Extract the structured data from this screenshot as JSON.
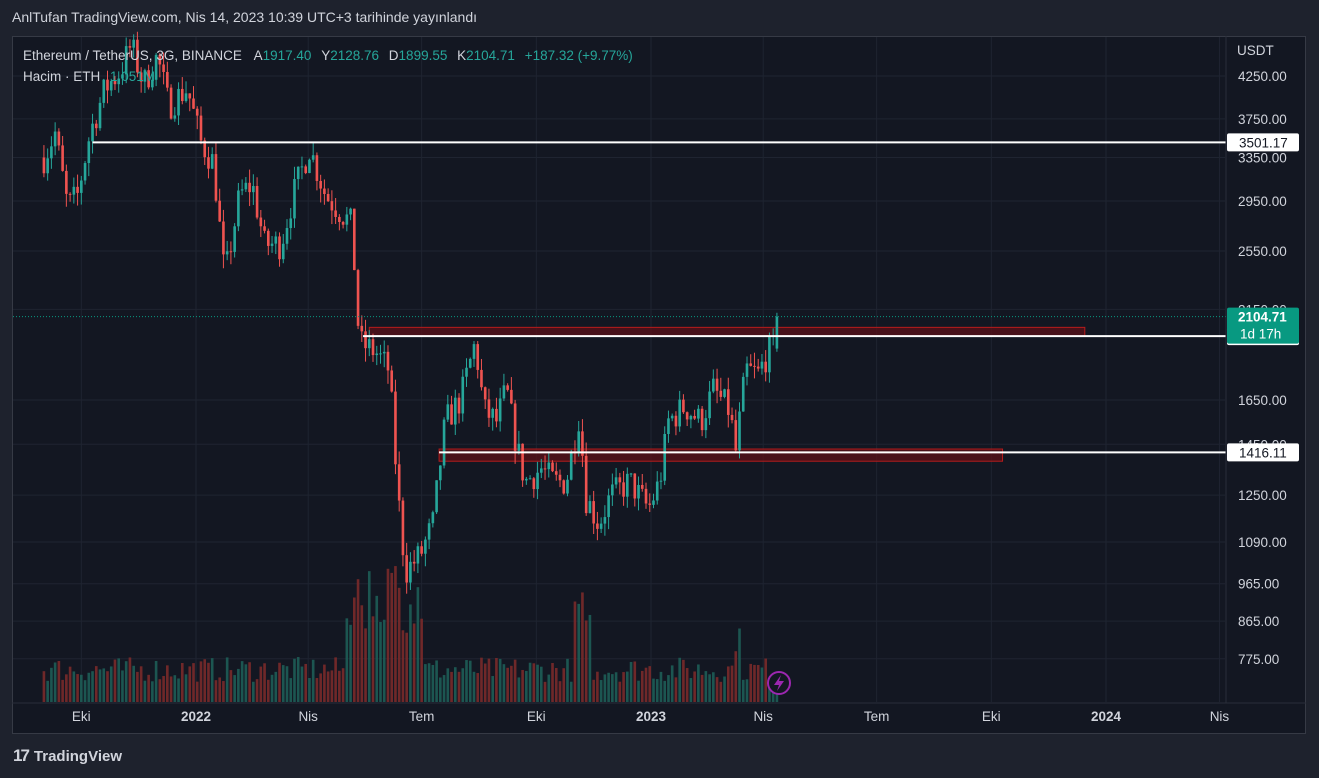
{
  "caption": "AnlTufan TradingView.com, Nis 14, 2023 10:39 UTC+3 tarihinde yayınlandı",
  "brand": "TradingView",
  "legend": {
    "symbol": "Ethereum / TetherUS, 3G, BINANCE",
    "o_key": "A",
    "o_val": "1917.40",
    "h_key": "Y",
    "h_val": "2128.76",
    "l_key": "D",
    "l_val": "1899.55",
    "c_key": "K",
    "c_val": "2104.71",
    "change": "+187.32 (+9.77%)",
    "volume_label": "Hacim · ETH",
    "volume_val": "1.051M"
  },
  "colors": {
    "up": "#26a69a",
    "down": "#ef5350",
    "background": "#131722",
    "grid": "#1f2431",
    "level_line": "#ffffff",
    "zone_fill": "#5b1018",
    "zone_border": "#b71c1c",
    "price_tag": "#089981"
  },
  "chart_data": {
    "type": "candlestick",
    "symbol": "ETH/USDT",
    "interval": "3G",
    "scale": "log",
    "currency": "USDT",
    "y_ticks": [
      "4250.00",
      "3750.00",
      "3350.00",
      "2950.00",
      "2550.00",
      "2150.00",
      "1650.00",
      "1450.00",
      "1250.00",
      "1090.00",
      "965.00",
      "865.00",
      "775.00"
    ],
    "x_ticks": [
      {
        "label": "Eki",
        "date": "2021-10-01",
        "bold": false
      },
      {
        "label": "2022",
        "date": "2022-01-01",
        "bold": true
      },
      {
        "label": "Nis",
        "date": "2022-04-01",
        "bold": false
      },
      {
        "label": "Tem",
        "date": "2022-07-01",
        "bold": false
      },
      {
        "label": "Eki",
        "date": "2022-10-01",
        "bold": false
      },
      {
        "label": "2023",
        "date": "2023-01-01",
        "bold": true
      },
      {
        "label": "Nis",
        "date": "2023-04-01",
        "bold": false
      },
      {
        "label": "Tem",
        "date": "2023-07-01",
        "bold": false
      },
      {
        "label": "Eki",
        "date": "2023-10-01",
        "bold": false
      },
      {
        "label": "2024",
        "date": "2024-01-01",
        "bold": true
      },
      {
        "label": "Nis",
        "date": "2024-04-01",
        "bold": false
      }
    ],
    "price_path": [
      [
        "2021-09-01",
        3350
      ],
      [
        "2021-09-10",
        3600
      ],
      [
        "2021-09-20",
        2900
      ],
      [
        "2021-09-28",
        3000
      ],
      [
        "2021-10-08",
        3600
      ],
      [
        "2021-10-20",
        4100
      ],
      [
        "2021-11-01",
        4300
      ],
      [
        "2021-11-10",
        4650
      ],
      [
        "2021-11-20",
        4150
      ],
      [
        "2021-12-01",
        4500
      ],
      [
        "2021-12-10",
        3900
      ],
      [
        "2021-12-25",
        4100
      ],
      [
        "2022-01-05",
        3500
      ],
      [
        "2022-01-15",
        3300
      ],
      [
        "2022-01-24",
        2350
      ],
      [
        "2022-02-05",
        3000
      ],
      [
        "2022-02-15",
        3100
      ],
      [
        "2022-02-25",
        2600
      ],
      [
        "2022-03-10",
        2600
      ],
      [
        "2022-03-20",
        3000
      ],
      [
        "2022-04-02",
        3450
      ],
      [
        "2022-04-15",
        3000
      ],
      [
        "2022-04-28",
        2850
      ],
      [
        "2022-05-06",
        2750
      ],
      [
        "2022-05-12",
        1950
      ],
      [
        "2022-05-25",
        1900
      ],
      [
        "2022-06-05",
        1800
      ],
      [
        "2022-06-12",
        1250
      ],
      [
        "2022-06-18",
        1000
      ],
      [
        "2022-06-30",
        1050
      ],
      [
        "2022-07-10",
        1150
      ],
      [
        "2022-07-20",
        1550
      ],
      [
        "2022-08-01",
        1650
      ],
      [
        "2022-08-13",
        1950
      ],
      [
        "2022-08-20",
        1600
      ],
      [
        "2022-08-30",
        1550
      ],
      [
        "2022-09-07",
        1700
      ],
      [
        "2022-09-15",
        1450
      ],
      [
        "2022-09-22",
        1300
      ],
      [
        "2022-10-05",
        1350
      ],
      [
        "2022-10-15",
        1300
      ],
      [
        "2022-10-25",
        1300
      ],
      [
        "2022-11-05",
        1600
      ],
      [
        "2022-11-09",
        1250
      ],
      [
        "2022-11-20",
        1150
      ],
      [
        "2022-11-30",
        1250
      ],
      [
        "2022-12-15",
        1300
      ],
      [
        "2022-12-30",
        1200
      ],
      [
        "2023-01-08",
        1300
      ],
      [
        "2023-01-15",
        1550
      ],
      [
        "2023-01-28",
        1620
      ],
      [
        "2023-02-10",
        1550
      ],
      [
        "2023-02-20",
        1700
      ],
      [
        "2023-03-05",
        1600
      ],
      [
        "2023-03-10",
        1420
      ],
      [
        "2023-03-18",
        1800
      ],
      [
        "2023-03-28",
        1780
      ],
      [
        "2023-04-05",
        1900
      ],
      [
        "2023-04-11",
        1920
      ],
      [
        "2023-04-14",
        2104.71
      ]
    ],
    "horizontal_levels": [
      {
        "value": 3501.17,
        "label": "3501.17",
        "from": "2021-10-10"
      },
      {
        "value": 1988.24,
        "label": "1988.24",
        "from": "2022-05-15"
      },
      {
        "value": 1416.11,
        "label": "1416.11",
        "from": "2022-07-15"
      }
    ],
    "zones": [
      {
        "from": "2022-05-20",
        "to": "2023-12-15",
        "low": 1990,
        "high": 2040
      },
      {
        "from": "2022-07-15",
        "to": "2023-10-10",
        "low": 1380,
        "high": 1430
      }
    ],
    "last_price": {
      "value": "2104.71",
      "countdown": "1d 17h"
    }
  }
}
